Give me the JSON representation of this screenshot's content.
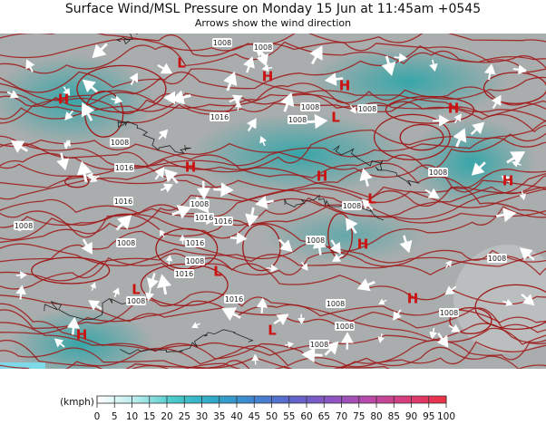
{
  "header": {
    "title": "Surface Wind/MSL Pressure on Monday 15 Jun at 11:45am +0545",
    "subtitle": "Arrows show the wind direction"
  },
  "map": {
    "isobar_labels": [
      "1008",
      "1008",
      "1008",
      "1008",
      "1008",
      "1016",
      "1008",
      "1016",
      "1016",
      "1008",
      "1016",
      "1016",
      "1008",
      "1008",
      "1016",
      "1008",
      "1016",
      "1008",
      "1008",
      "1008",
      "1008",
      "1008",
      "1008",
      "1008",
      "1008",
      "1008",
      "1016"
    ],
    "pressure_centers": [
      "H",
      "L",
      "H",
      "L",
      "H",
      "H",
      "L",
      "H",
      "H",
      "L",
      "H",
      "L",
      "H",
      "H",
      "L",
      "H"
    ]
  },
  "colorbar": {
    "unit_label": "(kmph)",
    "range": [
      0,
      100
    ],
    "ticks": [
      0,
      5,
      10,
      15,
      20,
      25,
      30,
      35,
      40,
      45,
      50,
      55,
      60,
      65,
      70,
      75,
      80,
      85,
      90,
      95,
      100
    ],
    "colors": [
      "#ffffff",
      "#b8ecec",
      "#45c9c9",
      "#2fa9c9",
      "#3f86d2",
      "#5d66cc",
      "#8a55c4",
      "#b94aac",
      "#d93c78",
      "#ee3040"
    ]
  }
}
